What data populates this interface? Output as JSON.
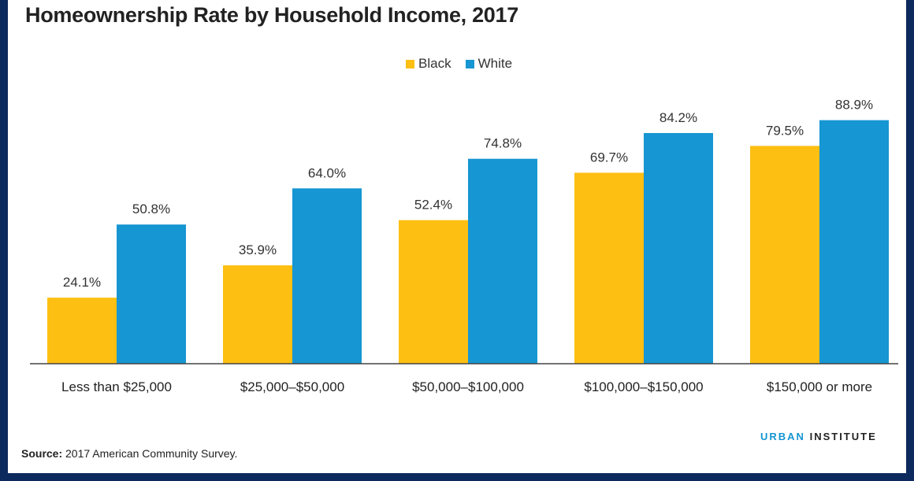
{
  "chart_data": {
    "type": "bar",
    "title": "Homeownership Rate by Household Income, 2017",
    "categories": [
      "Less than $25,000",
      "$25,000–$50,000",
      "$50,000–$100,000",
      "$100,000–$150,000",
      "$150,000 or more"
    ],
    "series": [
      {
        "name": "Black",
        "color": "#fdbf11",
        "values": [
          24.1,
          35.9,
          52.4,
          69.7,
          79.5
        ],
        "labels": [
          "24.1%",
          "35.9%",
          "52.4%",
          "69.7%",
          "79.5%"
        ]
      },
      {
        "name": "White",
        "color": "#1696d2",
        "values": [
          50.8,
          64.0,
          74.8,
          84.2,
          88.9
        ],
        "labels": [
          "50.8%",
          "64.0%",
          "74.8%",
          "84.2%",
          "88.9%"
        ]
      }
    ],
    "ylim": [
      0,
      100
    ],
    "grid": false,
    "legend": "top-center"
  },
  "source": {
    "label": "Source:",
    "text": " 2017 American Community Survey."
  },
  "brand": {
    "part1": "URBAN",
    "part2": "INSTITUTE"
  }
}
